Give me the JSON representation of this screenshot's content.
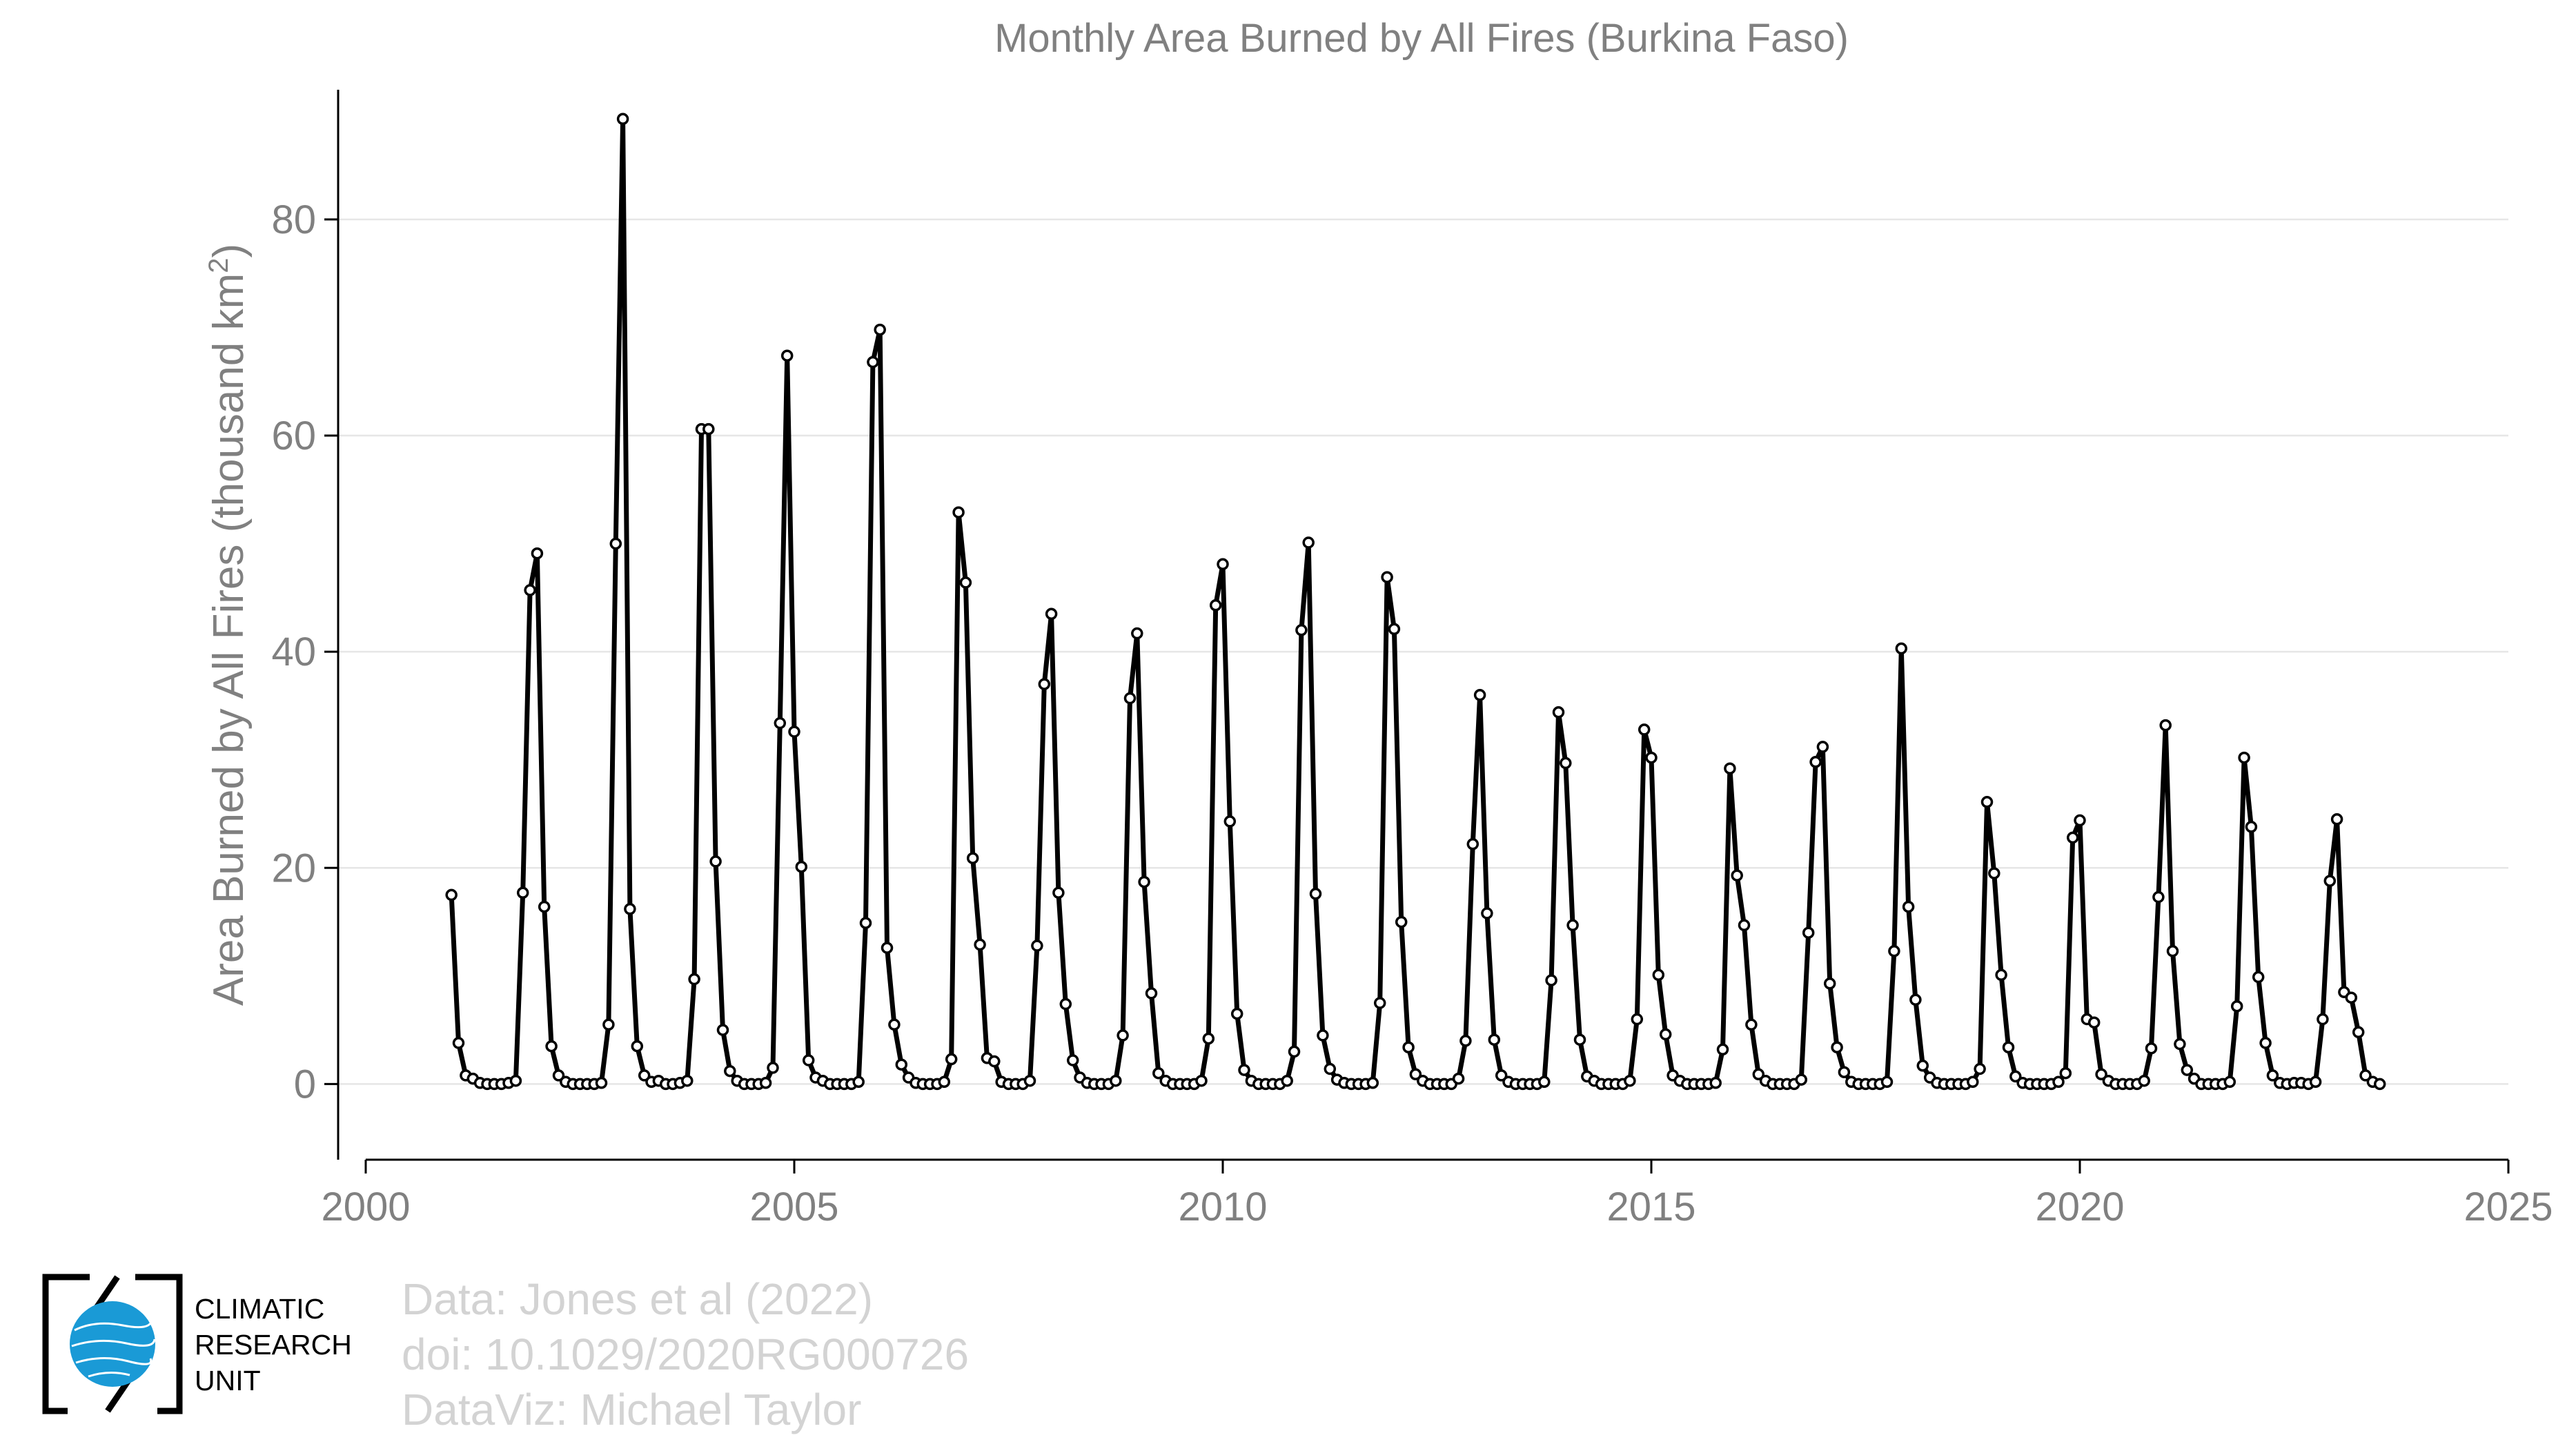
{
  "chart_data": {
    "type": "line",
    "title": "Monthly Area Burned by All Fires (Burkina Faso)",
    "xlabel": "",
    "ylabel": "Area Burned by All Fires (thousand km",
    "ylabel_sup": "2",
    "ylabel_tail": ")",
    "xlim": [
      2000,
      2025
    ],
    "ylim": [
      -7,
      92
    ],
    "x_ticks": [
      2000,
      2005,
      2010,
      2015,
      2020,
      2025
    ],
    "x_tick_labels": [
      "2000",
      "2005",
      "2010",
      "2015",
      "2020",
      "2025"
    ],
    "y_ticks": [
      0,
      20,
      40,
      60,
      80
    ],
    "y_tick_labels": [
      "0",
      "20",
      "40",
      "60",
      "80"
    ],
    "grid": "horizontal",
    "start": "2001-01",
    "end": "2023-05",
    "frequency": "monthly",
    "series_color": "#000000",
    "values": [
      17.5,
      3.8,
      0.8,
      0.5,
      0.1,
      0.0,
      0.0,
      0.0,
      0.1,
      0.3,
      17.7,
      45.7,
      49.1,
      16.4,
      3.5,
      0.8,
      0.2,
      0.0,
      0.0,
      0.0,
      0.0,
      0.1,
      5.5,
      50.0,
      89.3,
      16.2,
      3.5,
      0.8,
      0.2,
      0.3,
      0.0,
      0.0,
      0.1,
      0.3,
      9.7,
      60.6,
      60.6,
      20.6,
      5.0,
      1.2,
      0.3,
      0.0,
      0.0,
      0.0,
      0.1,
      1.5,
      33.4,
      67.4,
      32.6,
      20.1,
      2.2,
      0.6,
      0.3,
      0.0,
      0.0,
      0.0,
      0.0,
      0.2,
      14.9,
      66.8,
      69.8,
      12.6,
      5.5,
      1.8,
      0.6,
      0.1,
      0.0,
      0.0,
      0.0,
      0.2,
      2.3,
      52.9,
      46.4,
      20.9,
      12.9,
      2.4,
      2.1,
      0.2,
      0.0,
      0.0,
      0.0,
      0.3,
      12.8,
      37.0,
      43.5,
      17.7,
      7.4,
      2.2,
      0.6,
      0.1,
      0.0,
      0.0,
      0.0,
      0.3,
      4.5,
      35.7,
      41.7,
      18.7,
      8.4,
      1.0,
      0.3,
      0.0,
      0.0,
      0.0,
      0.0,
      0.3,
      4.2,
      44.3,
      48.1,
      24.3,
      6.5,
      1.3,
      0.3,
      0.0,
      0.0,
      0.0,
      0.0,
      0.3,
      3.0,
      42.0,
      50.1,
      17.6,
      4.5,
      1.4,
      0.4,
      0.1,
      0.0,
      0.0,
      0.0,
      0.1,
      7.5,
      46.9,
      42.1,
      15.0,
      3.4,
      0.9,
      0.3,
      0.0,
      0.0,
      0.0,
      0.0,
      0.5,
      4.0,
      22.2,
      36.0,
      15.8,
      4.1,
      0.8,
      0.2,
      0.0,
      0.0,
      0.0,
      0.0,
      0.2,
      9.6,
      34.4,
      29.7,
      14.7,
      4.1,
      0.7,
      0.3,
      0.0,
      0.0,
      0.0,
      0.0,
      0.3,
      6.0,
      32.8,
      30.2,
      10.1,
      4.6,
      0.8,
      0.3,
      0.0,
      0.0,
      0.0,
      0.0,
      0.1,
      3.2,
      29.2,
      19.3,
      14.7,
      5.5,
      0.9,
      0.3,
      0.0,
      0.0,
      0.0,
      0.0,
      0.4,
      14.0,
      29.8,
      31.2,
      9.3,
      3.4,
      1.1,
      0.2,
      0.0,
      0.0,
      0.0,
      0.0,
      0.2,
      12.3,
      40.3,
      16.4,
      7.8,
      1.7,
      0.6,
      0.1,
      0.0,
      0.0,
      0.0,
      0.0,
      0.2,
      1.4,
      26.1,
      19.5,
      10.1,
      3.4,
      0.7,
      0.1,
      0.0,
      0.0,
      0.0,
      0.0,
      0.2,
      1.0,
      22.8,
      24.4,
      6.0,
      5.7,
      0.9,
      0.3,
      0.0,
      0.0,
      0.0,
      0.0,
      0.3,
      3.3,
      17.3,
      33.2,
      12.3,
      3.7,
      1.3,
      0.5,
      0.0,
      0.0,
      0.0,
      0.0,
      0.2,
      7.2,
      30.2,
      23.8,
      9.9,
      3.8,
      0.8,
      0.1,
      0.0,
      0.1,
      0.1,
      0.0,
      0.2,
      6.0,
      18.8,
      24.5,
      8.5,
      8.0,
      4.8,
      0.8,
      0.2,
      0.0
    ]
  },
  "credits": {
    "line1": "Data: Jones et al (2022)",
    "line2": "doi: 10.1029/2020RG000726",
    "line3": "DataViz: Michael Taylor"
  },
  "logo": {
    "line1": "CLIMATIC",
    "line2": "RESEARCH",
    "line3": "UNIT",
    "color": "#1a9ad6"
  }
}
